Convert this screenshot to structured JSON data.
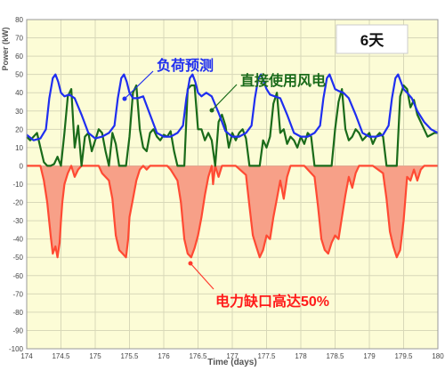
{
  "chart_data": {
    "type": "line",
    "xlabel": "Time (days)",
    "ylabel": "Power (kW)",
    "xlim": [
      174,
      180
    ],
    "ylim": [
      -100,
      80
    ],
    "x_ticks": [
      "174",
      "174.5",
      "175",
      "175.5",
      "176",
      "176.5",
      "177",
      "177.5",
      "178",
      "178.5",
      "179",
      "179.5",
      "180"
    ],
    "y_ticks": [
      "80",
      "70",
      "60",
      "50",
      "40",
      "30",
      "20",
      "10",
      "0",
      "-10",
      "-20",
      "-30",
      "-40",
      "-50",
      "-60",
      "-70",
      "-80",
      "-90",
      "-100"
    ],
    "grid": true,
    "badge": "6天",
    "annotations": {
      "load": "负荷预测",
      "wind": "直接使用风电",
      "gap": "电力缺口高达50%"
    },
    "series": [
      {
        "name": "负荷预测",
        "color": "#1f2ef0",
        "x": [
          174.0,
          174.1,
          174.2,
          174.28,
          174.33,
          174.38,
          174.42,
          174.46,
          174.5,
          174.55,
          174.62,
          174.7,
          174.8,
          174.9,
          175.0,
          175.1,
          175.2,
          175.28,
          175.33,
          175.38,
          175.42,
          175.46,
          175.5,
          175.55,
          175.62,
          175.7,
          175.8,
          175.9,
          176.0,
          176.1,
          176.2,
          176.28,
          176.33,
          176.38,
          176.42,
          176.46,
          176.5,
          176.55,
          176.62,
          176.7,
          176.8,
          176.9,
          177.0,
          177.1,
          177.2,
          177.28,
          177.33,
          177.38,
          177.42,
          177.46,
          177.5,
          177.55,
          177.62,
          177.7,
          177.8,
          177.9,
          178.0,
          178.1,
          178.2,
          178.28,
          178.33,
          178.38,
          178.42,
          178.46,
          178.5,
          178.55,
          178.62,
          178.7,
          178.8,
          178.9,
          179.0,
          179.1,
          179.2,
          179.28,
          179.33,
          179.38,
          179.42,
          179.46,
          179.5,
          179.55,
          179.62,
          179.7,
          179.8,
          179.9,
          180.0
        ],
        "values": [
          17,
          14,
          15,
          20,
          37,
          48,
          50,
          46,
          40,
          38,
          39,
          37,
          28,
          18,
          15,
          16,
          18,
          22,
          37,
          48,
          50,
          46,
          40,
          37,
          37,
          38,
          28,
          18,
          16,
          16,
          18,
          22,
          37,
          48,
          50,
          46,
          40,
          38,
          40,
          38,
          29,
          19,
          16,
          16,
          18,
          22,
          37,
          48,
          50,
          46,
          42,
          39,
          38,
          37,
          28,
          18,
          16,
          16,
          18,
          22,
          37,
          48,
          50,
          46,
          42,
          41,
          40,
          37,
          28,
          18,
          16,
          16,
          17,
          22,
          37,
          48,
          50,
          46,
          42,
          40,
          37,
          30,
          24,
          20,
          18
        ]
      },
      {
        "name": "直接使用风电",
        "color": "#1a6b1a",
        "x": [
          174.0,
          174.05,
          174.1,
          174.15,
          174.2,
          174.25,
          174.3,
          174.35,
          174.4,
          174.45,
          174.5,
          174.55,
          174.6,
          174.65,
          174.7,
          174.75,
          174.8,
          174.85,
          174.9,
          174.95,
          175.0,
          175.05,
          175.1,
          175.15,
          175.2,
          175.25,
          175.3,
          175.35,
          175.4,
          175.45,
          175.5,
          175.55,
          175.6,
          175.65,
          175.7,
          175.75,
          175.8,
          175.85,
          175.9,
          175.95,
          176.0,
          176.05,
          176.1,
          176.15,
          176.2,
          176.25,
          176.3,
          176.35,
          176.4,
          176.45,
          176.5,
          176.55,
          176.6,
          176.65,
          176.7,
          176.75,
          176.8,
          176.85,
          176.9,
          176.95,
          177.0,
          177.05,
          177.1,
          177.15,
          177.2,
          177.25,
          177.3,
          177.35,
          177.4,
          177.45,
          177.5,
          177.55,
          177.6,
          177.65,
          177.7,
          177.75,
          177.8,
          177.85,
          177.9,
          177.95,
          178.0,
          178.05,
          178.1,
          178.15,
          178.2,
          178.25,
          178.3,
          178.35,
          178.4,
          178.45,
          178.5,
          178.55,
          178.6,
          178.65,
          178.7,
          178.75,
          178.8,
          178.85,
          178.9,
          178.95,
          179.0,
          179.05,
          179.1,
          179.15,
          179.2,
          179.25,
          179.3,
          179.35,
          179.4,
          179.45,
          179.5,
          179.55,
          179.6,
          179.65,
          179.7,
          179.75,
          179.8,
          179.85,
          179.9,
          179.95,
          180.0
        ],
        "values": [
          16,
          14,
          16,
          18,
          10,
          2,
          0,
          0,
          1,
          5,
          0,
          18,
          38,
          42,
          10,
          22,
          0,
          16,
          18,
          8,
          14,
          20,
          18,
          8,
          0,
          18,
          12,
          0,
          0,
          0,
          16,
          40,
          44,
          20,
          10,
          8,
          18,
          20,
          16,
          14,
          17,
          16,
          19,
          8,
          0,
          0,
          0,
          42,
          44,
          44,
          20,
          20,
          14,
          18,
          14,
          0,
          24,
          28,
          22,
          10,
          18,
          14,
          18,
          20,
          15,
          0,
          0,
          0,
          0,
          14,
          10,
          16,
          34,
          40,
          18,
          20,
          12,
          16,
          14,
          10,
          16,
          12,
          18,
          16,
          0,
          0,
          0,
          0,
          0,
          0,
          20,
          35,
          42,
          20,
          14,
          16,
          20,
          18,
          14,
          16,
          18,
          12,
          16,
          18,
          16,
          0,
          0,
          0,
          0,
          38,
          44,
          42,
          32,
          36,
          28,
          24,
          20,
          16,
          17,
          18,
          18
        ]
      },
      {
        "name": "电力缺口",
        "color": "#ff4a33",
        "fill": "#f7a088",
        "x": [
          174.0,
          174.2,
          174.25,
          174.3,
          174.35,
          174.38,
          174.42,
          174.45,
          174.48,
          174.5,
          174.52,
          174.55,
          174.6,
          174.65,
          174.7,
          174.75,
          174.8,
          175.05,
          175.1,
          175.2,
          175.25,
          175.3,
          175.35,
          175.4,
          175.45,
          175.48,
          175.5,
          175.55,
          175.6,
          175.65,
          175.7,
          175.75,
          175.8,
          176.05,
          176.1,
          176.2,
          176.25,
          176.3,
          176.35,
          176.4,
          176.45,
          176.5,
          176.55,
          176.6,
          176.65,
          176.7,
          176.72,
          176.75,
          176.8,
          176.85,
          177.05,
          177.2,
          177.25,
          177.3,
          177.35,
          177.4,
          177.45,
          177.5,
          177.55,
          177.6,
          177.65,
          177.7,
          177.75,
          177.8,
          177.85,
          178.05,
          178.2,
          178.25,
          178.3,
          178.35,
          178.4,
          178.45,
          178.5,
          178.55,
          178.6,
          178.65,
          178.7,
          178.75,
          178.8,
          178.85,
          179.05,
          179.2,
          179.25,
          179.3,
          179.35,
          179.4,
          179.45,
          179.5,
          179.55,
          179.6,
          179.65,
          179.7,
          179.75,
          179.8,
          180.0
        ],
        "values": [
          0,
          0,
          -8,
          -20,
          -38,
          -48,
          -44,
          -50,
          -42,
          -30,
          -20,
          -10,
          -4,
          0,
          -6,
          -2,
          0,
          0,
          -4,
          -8,
          -18,
          -38,
          -46,
          -48,
          -50,
          -40,
          -28,
          -18,
          -8,
          -2,
          0,
          -2,
          0,
          0,
          -2,
          -8,
          -20,
          -40,
          -48,
          -50,
          -45,
          -38,
          -28,
          -16,
          -6,
          0,
          -10,
          0,
          -6,
          0,
          0,
          -5,
          -22,
          -38,
          -44,
          -50,
          -46,
          -38,
          -40,
          -28,
          -18,
          -8,
          -18,
          -6,
          0,
          0,
          -6,
          -22,
          -40,
          -46,
          -48,
          -42,
          -38,
          -40,
          -28,
          -16,
          -6,
          -12,
          -4,
          0,
          0,
          -4,
          -18,
          -36,
          -44,
          -50,
          -46,
          -30,
          -6,
          -8,
          -2,
          -8,
          -2,
          0,
          0
        ]
      }
    ]
  }
}
